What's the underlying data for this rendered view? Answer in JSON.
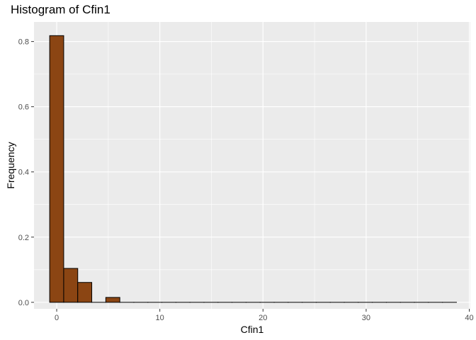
{
  "chart_data": {
    "type": "bar",
    "title": "Histogram of Cfin1",
    "xlabel": "Cfin1",
    "ylabel": "Frequency",
    "xlim": [
      -2.2,
      40.1
    ],
    "ylim": [
      -0.02,
      0.86
    ],
    "x_ticks": [
      0,
      10,
      20,
      30,
      40
    ],
    "y_ticks": [
      0.0,
      0.2,
      0.4,
      0.6,
      0.8
    ],
    "x_tick_labels": [
      "0",
      "10",
      "20",
      "30",
      "40"
    ],
    "y_tick_labels": [
      "0.0",
      "0.2",
      "0.4",
      "0.6",
      "0.8"
    ],
    "bin_width": 1.36,
    "bin_start": -0.68,
    "values": [
      0.818,
      0.104,
      0.061,
      0.0,
      0.015,
      0,
      0,
      0,
      0,
      0,
      0,
      0,
      0,
      0,
      0,
      0,
      0,
      0,
      0,
      0,
      0,
      0,
      0,
      0,
      0,
      0,
      0,
      0,
      0
    ],
    "bar_fill": "#8b4513",
    "bar_stroke": "#000000",
    "panel_background": "#ebebeb",
    "grid_color": "#ffffff",
    "grid": true
  }
}
